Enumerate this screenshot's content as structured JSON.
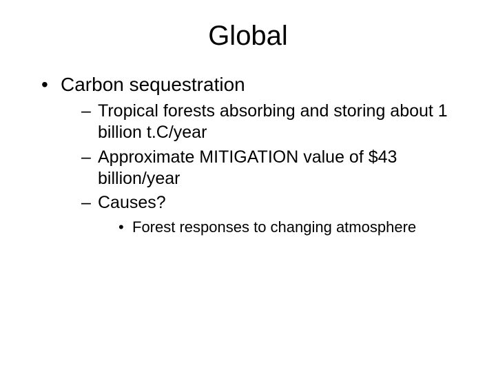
{
  "slide": {
    "title": "Global",
    "background_color": "#ffffff",
    "text_color": "#000000",
    "font_family": "Arial",
    "title_fontsize": 40,
    "bullets": {
      "lvl1": [
        {
          "text": "Carbon sequestration",
          "fontsize": 28,
          "children": [
            {
              "text": "Tropical forests absorbing and storing about 1 billion t.C/year",
              "fontsize": 25
            },
            {
              "text": "Approximate MITIGATION value of $43 billion/year",
              "fontsize": 25
            },
            {
              "text": "Causes?",
              "fontsize": 25,
              "children": [
                {
                  "text": "Forest responses to changing atmosphere",
                  "fontsize": 22
                }
              ]
            }
          ]
        }
      ]
    }
  }
}
